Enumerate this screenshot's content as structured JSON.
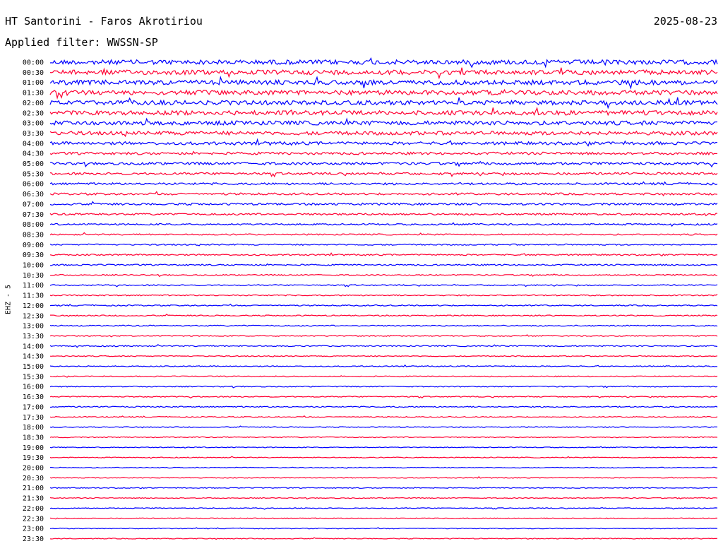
{
  "header": {
    "station": "HT Santorini - Faros Akrotiriou",
    "date": "2025-08-23",
    "filter": "Applied filter: WWSSN-SP"
  },
  "chart_data": {
    "type": "helicorder",
    "channel_label": "EHZ - 5",
    "row_times": [
      "00:00",
      "00:30",
      "01:00",
      "01:30",
      "02:00",
      "02:30",
      "03:00",
      "03:30",
      "04:00",
      "04:30",
      "05:00",
      "05:30",
      "06:00",
      "06:30",
      "07:00",
      "07:30",
      "08:00",
      "08:30",
      "09:00",
      "09:30",
      "10:00",
      "10:30",
      "11:00",
      "11:30",
      "12:00",
      "12:30",
      "13:00",
      "13:30",
      "14:00",
      "14:30",
      "15:00",
      "15:30",
      "16:00",
      "16:30",
      "17:00",
      "17:30",
      "18:00",
      "18:30",
      "19:00",
      "19:30",
      "20:00",
      "20:30",
      "21:00",
      "21:30",
      "22:00",
      "22:30",
      "23:00",
      "23:30"
    ],
    "minutes_per_row": 30,
    "colors": [
      "#0000ff",
      "#ff0033"
    ],
    "relative_noise_amplitude": [
      1.0,
      1.0,
      1.0,
      1.0,
      0.95,
      0.95,
      0.9,
      0.8,
      0.65,
      0.55,
      0.55,
      0.5,
      0.45,
      0.45,
      0.45,
      0.4,
      0.35,
      0.3,
      0.3,
      0.3,
      0.3,
      0.25,
      0.25,
      0.25,
      0.25,
      0.25,
      0.25,
      0.25,
      0.25,
      0.2,
      0.22,
      0.22,
      0.22,
      0.22,
      0.25,
      0.2,
      0.2,
      0.2,
      0.18,
      0.18,
      0.18,
      0.18,
      0.18,
      0.18,
      0.18,
      0.18,
      0.18,
      0.18
    ],
    "grid": false
  }
}
